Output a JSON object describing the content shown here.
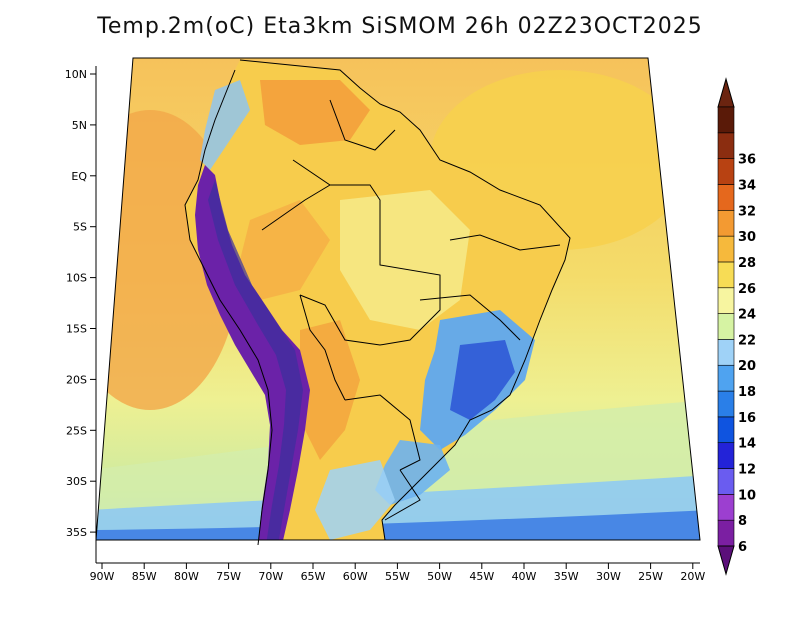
{
  "title": "Temp.2m(oC) Eta3km SiSMOM 26h 02Z23OCT2025",
  "lat_ticks": [
    "10N",
    "5N",
    "EQ",
    "5S",
    "10S",
    "15S",
    "20S",
    "25S",
    "30S",
    "35S"
  ],
  "lon_ticks": [
    "90W",
    "85W",
    "80W",
    "75W",
    "70W",
    "65W",
    "60W",
    "55W",
    "50W",
    "45W",
    "40W",
    "35W",
    "30W",
    "25W",
    "20W"
  ],
  "colorbar": {
    "labels": [
      "6",
      "8",
      "10",
      "12",
      "14",
      "16",
      "18",
      "20",
      "22",
      "24",
      "26",
      "28",
      "30",
      "32",
      "34",
      "36"
    ],
    "colors": [
      "#7b1fa2",
      "#9c3fd0",
      "#6a5cf0",
      "#2323d8",
      "#0f54e0",
      "#2a7fe8",
      "#4fa3f0",
      "#9fd2f7",
      "#d6f3a3",
      "#f7f5a0",
      "#f7dc55",
      "#f6b93c",
      "#f39a32",
      "#e5681d",
      "#b84212",
      "#8b2d10",
      "#5a1a08"
    ],
    "min_color": "#5b0f7a",
    "max_color": "#6b2410"
  },
  "palette": {
    "ocean_warm": "#f6c15a",
    "ocean_mid": "#f4dc6a",
    "ocean_cool": "#dcef99",
    "land_hot": "#f3a03c",
    "land_warm": "#f7d04e",
    "land_mild": "#f6ee8f",
    "highland_cool": "#5fa8ef",
    "highland_cold": "#2f59d6",
    "andes_cold": "#6b22a8"
  }
}
